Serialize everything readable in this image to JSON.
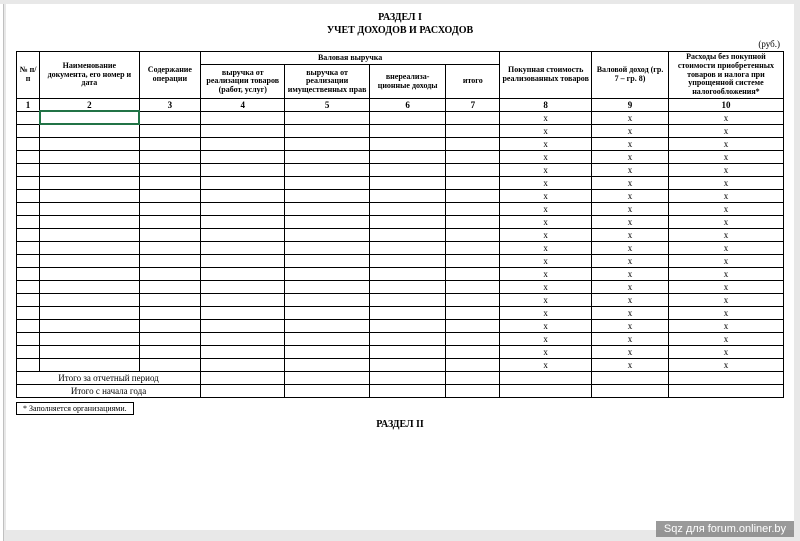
{
  "title_line1": "РАЗДЕЛ I",
  "title_line2": "УЧЕТ ДОХОДОВ И РАСХОДОВ",
  "unit_label": "(руб.)",
  "header": {
    "col1": "№ п/п",
    "col2": "Наименование документа, его номер и дата",
    "col3": "Содержание операции",
    "group_top": "Валовая выручка",
    "col4": "выручка от реализации товаров (работ, услуг)",
    "col5": "выручка от реализации имущественных прав",
    "col6": "внереализа-ционные доходы",
    "col7": "итого",
    "col8": "Покупная стоимость реализованных товаров",
    "col9": "Валовой доход (гр. 7 – гр. 8)",
    "col10": "Расходы без покупной стоимости приобретенных товаров и налога при упрощенной системе налогообложения*"
  },
  "colnums": [
    "1",
    "2",
    "3",
    "4",
    "5",
    "6",
    "7",
    "8",
    "9",
    "10"
  ],
  "x_mark": "x",
  "data_row_count": 20,
  "totals": {
    "period": "Итого за отчетный период",
    "year": "Итого с начала года"
  },
  "footnote": "*   Заполняется организациями.",
  "section2": "РАЗДЕЛ II",
  "watermark": "Sqz для forum.onliner.by",
  "col_widths_pct": [
    3.0,
    13.0,
    8.0,
    11.0,
    11.0,
    10.0,
    7.0,
    12.0,
    10.0,
    15.0
  ],
  "colors": {
    "page_bg": "#e8e8e8",
    "sheet_bg": "#ffffff",
    "border": "#000000",
    "selection": "#217346",
    "watermark_bg": "rgba(120,120,120,0.75)",
    "watermark_fg": "#ffffff"
  }
}
